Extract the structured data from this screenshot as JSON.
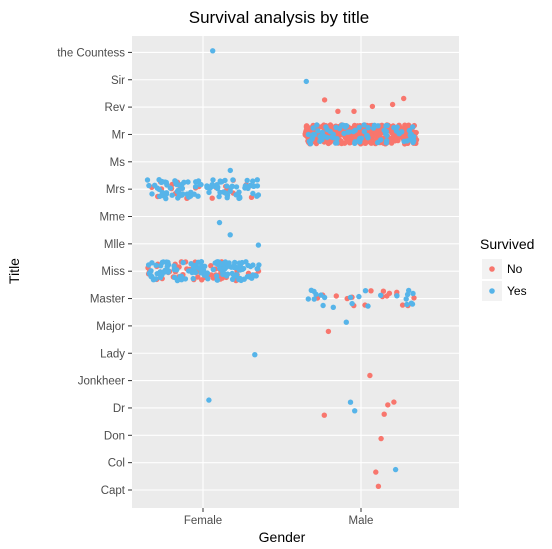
{
  "chart_data": {
    "type": "scatter",
    "title": "Survival analysis by title",
    "xlabel": "Gender",
    "ylabel": "Title",
    "x_categories": [
      "Female",
      "Male"
    ],
    "y_categories": [
      "Capt",
      "Col",
      "Don",
      "Dr",
      "Jonkheer",
      "Lady",
      "Major",
      "Master",
      "Miss",
      "Mlle",
      "Mme",
      "Mrs",
      "Ms",
      "Mr",
      "Rev",
      "Sir",
      "the Countess"
    ],
    "legend": {
      "title": "Survived",
      "entries": [
        "No",
        "Yes"
      ],
      "placement": "right"
    },
    "colors": {
      "No": "#F8766D",
      "Yes": "#56B4E9",
      "panel": "#EBEBEB",
      "grid": "#FFFFFF"
    },
    "jitter": true,
    "series": [
      {
        "name": "No",
        "points": [
          {
            "gender": "Male",
            "title": "Capt",
            "count": 1
          },
          {
            "gender": "Male",
            "title": "Col",
            "count": 1
          },
          {
            "gender": "Male",
            "title": "Don",
            "count": 1
          },
          {
            "gender": "Male",
            "title": "Dr",
            "count": 4
          },
          {
            "gender": "Male",
            "title": "Jonkheer",
            "count": 1
          },
          {
            "gender": "Male",
            "title": "Major",
            "count": 1
          },
          {
            "gender": "Male",
            "title": "Master",
            "count": 17
          },
          {
            "gender": "Female",
            "title": "Miss",
            "count": 55
          },
          {
            "gender": "Female",
            "title": "Mrs",
            "count": 26
          },
          {
            "gender": "Male",
            "title": "Mr",
            "count": 436
          },
          {
            "gender": "Male",
            "title": "Rev",
            "count": 6
          }
        ]
      },
      {
        "name": "Yes",
        "points": [
          {
            "gender": "Male",
            "title": "Col",
            "count": 1
          },
          {
            "gender": "Female",
            "title": "Dr",
            "count": 1
          },
          {
            "gender": "Male",
            "title": "Dr",
            "count": 2
          },
          {
            "gender": "Female",
            "title": "Lady",
            "count": 1
          },
          {
            "gender": "Male",
            "title": "Major",
            "count": 1
          },
          {
            "gender": "Male",
            "title": "Master",
            "count": 23
          },
          {
            "gender": "Female",
            "title": "Miss",
            "count": 127
          },
          {
            "gender": "Female",
            "title": "Mlle",
            "count": 2
          },
          {
            "gender": "Female",
            "title": "Mme",
            "count": 1
          },
          {
            "gender": "Female",
            "title": "Mrs",
            "count": 99
          },
          {
            "gender": "Female",
            "title": "Ms",
            "count": 1
          },
          {
            "gender": "Male",
            "title": "Mr",
            "count": 81
          },
          {
            "gender": "Male",
            "title": "Sir",
            "count": 1
          },
          {
            "gender": "Female",
            "title": "the Countess",
            "count": 1
          }
        ]
      }
    ]
  }
}
